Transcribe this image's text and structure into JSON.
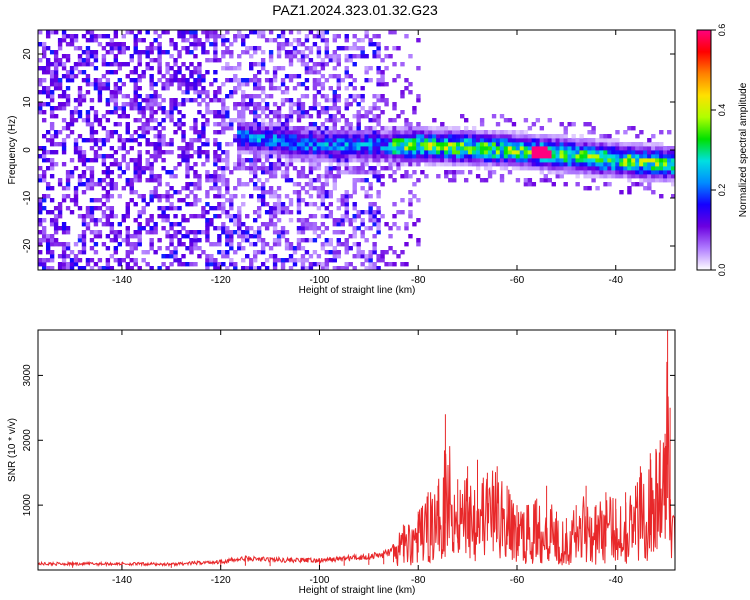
{
  "title": "PAZ1.2024.323.01.32.G23",
  "chart_data": [
    {
      "type": "heatmap",
      "xlabel": "Height of straight line (km)",
      "ylabel": "Frequency (Hz)",
      "xlim": [
        -157,
        -28
      ],
      "ylim": [
        -25,
        25
      ],
      "xticks": [
        -140,
        -120,
        -100,
        -80,
        -60,
        -40
      ],
      "yticks": [
        -20,
        -10,
        0,
        10,
        20
      ],
      "colorbar": {
        "label": "Normalized spectral amplitude",
        "range": [
          0,
          0.6
        ],
        "ticks": [
          "0.0",
          "0.2",
          "0.4",
          "0.6"
        ],
        "colormap": [
          "#ffffff",
          "#b07cff",
          "#6b00e0",
          "#1500ff",
          "#008cff",
          "#00e0e0",
          "#00e000",
          "#b0ff00",
          "#ffe000",
          "#ff8000",
          "#ff0000",
          "#ff007f"
        ]
      },
      "description_signal": {
        "x_start": -117,
        "x_end": -28,
        "center_frequency_hz": [
          [
            -117,
            3
          ],
          [
            -100,
            1
          ],
          [
            -80,
            1
          ],
          [
            -60,
            0
          ],
          [
            -40,
            -2
          ],
          [
            -28,
            -3
          ]
        ],
        "peak_x": -55,
        "peak_value": 0.6
      }
    },
    {
      "type": "line",
      "xlabel": "Height of straight line (km)",
      "ylabel": "SNR (10 * v/v)",
      "xlim": [
        -157,
        -28
      ],
      "ylim": [
        0,
        3700
      ],
      "xticks": [
        -140,
        -120,
        -100,
        -80,
        -60,
        -40
      ],
      "yticks": [
        1000,
        2000,
        3000
      ],
      "series": [
        {
          "color": "#e8282a",
          "x": [
            -157,
            -150,
            -140,
            -130,
            -120,
            -115,
            -110,
            -100,
            -95,
            -90,
            -87,
            -85,
            -83,
            -80,
            -78,
            -76,
            -74.5,
            -72,
            -70,
            -68,
            -66,
            -64,
            -62,
            -60,
            -58,
            -56,
            -54,
            -52,
            -50,
            -48,
            -46,
            -44,
            -42,
            -40,
            -38,
            -36,
            -35,
            -33,
            -31,
            -30,
            -29.5,
            -29,
            -28
          ],
          "values": [
            120,
            120,
            120,
            110,
            160,
            220,
            200,
            180,
            220,
            260,
            300,
            400,
            700,
            900,
            1200,
            1300,
            2400,
            1400,
            1600,
            1700,
            1500,
            1600,
            1300,
            1000,
            1000,
            1100,
            1300,
            900,
            800,
            1000,
            1300,
            1000,
            1200,
            1100,
            1200,
            1300,
            1600,
            1800,
            2000,
            2100,
            3700,
            2500,
            1800
          ]
        }
      ]
    }
  ]
}
